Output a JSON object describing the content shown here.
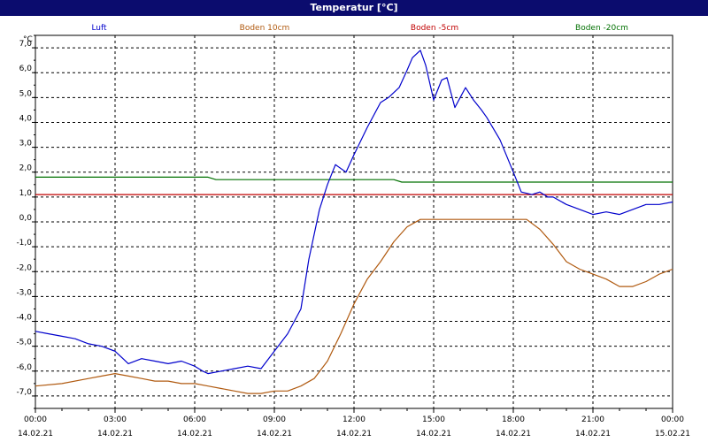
{
  "title": "Temperatur [°C]",
  "chart_data": {
    "type": "line",
    "y_unit": "°C",
    "ylim": [
      -7.5,
      7.5
    ],
    "y_ticks": [
      "7,0",
      "6,0",
      "5,0",
      "4,0",
      "3,0",
      "2,0",
      "1,0",
      "0,0",
      "-1,0",
      "-2,0",
      "-3,0",
      "-4,0",
      "-5,0",
      "-6,0",
      "-7,0"
    ],
    "x_ticks": [
      {
        "time": "00:00",
        "date": "14.02.21"
      },
      {
        "time": "03:00",
        "date": "14.02.21"
      },
      {
        "time": "06:00",
        "date": "14.02.21"
      },
      {
        "time": "09:00",
        "date": "14.02.21"
      },
      {
        "time": "12:00",
        "date": "14.02.21"
      },
      {
        "time": "15:00",
        "date": "14.02.21"
      },
      {
        "time": "18:00",
        "date": "14.02.21"
      },
      {
        "time": "21:00",
        "date": "14.02.21"
      },
      {
        "time": "00:00",
        "date": "15.02.21"
      }
    ],
    "grid": true,
    "series": [
      {
        "name": "Luft",
        "color": "#0000cc",
        "x": [
          0,
          0.5,
          1,
          1.5,
          2,
          2.5,
          3,
          3.3,
          3.5,
          4,
          4.5,
          5,
          5.5,
          6,
          6.3,
          6.5,
          7,
          7.5,
          8,
          8.5,
          9,
          9.5,
          10,
          10.3,
          10.7,
          11,
          11.3,
          11.7,
          12,
          12.5,
          13,
          13.3,
          13.7,
          14,
          14.2,
          14.5,
          14.7,
          15,
          15.3,
          15.5,
          15.8,
          16,
          16.2,
          16.5,
          16.8,
          17,
          17.5,
          18,
          18.3,
          18.7,
          19,
          19.3,
          19.5,
          20,
          20.5,
          21,
          21.5,
          22,
          22.5,
          23,
          23.5,
          24
        ],
        "y": [
          -4.4,
          -4.5,
          -4.6,
          -4.7,
          -4.9,
          -5,
          -5.2,
          -5.5,
          -5.7,
          -5.5,
          -5.6,
          -5.7,
          -5.6,
          -5.8,
          -6,
          -6.1,
          -6,
          -5.9,
          -5.8,
          -5.9,
          -5.2,
          -4.5,
          -3.5,
          -1.5,
          0.5,
          1.5,
          2.3,
          2,
          2.7,
          3.8,
          4.8,
          5,
          5.4,
          6.1,
          6.6,
          6.9,
          6.3,
          4.9,
          5.7,
          5.8,
          4.6,
          5,
          5.4,
          4.9,
          4.5,
          4.2,
          3.3,
          2,
          1.2,
          1.1,
          1.2,
          1,
          1,
          0.7,
          0.5,
          0.3,
          0.4,
          0.3,
          0.5,
          0.7,
          0.7,
          0.8
        ]
      },
      {
        "name": "Boden 10cm",
        "color": "#b05a10",
        "x": [
          0,
          1,
          2,
          2.5,
          3,
          3.5,
          4,
          4.5,
          5,
          5.5,
          6,
          6.5,
          7,
          7.5,
          8,
          8.5,
          9,
          9.5,
          10,
          10.5,
          11,
          11.5,
          12,
          12.5,
          13,
          13.5,
          14,
          14.5,
          15,
          15.5,
          16,
          16.5,
          17,
          17.5,
          18,
          18.5,
          19,
          19.5,
          20,
          20.5,
          21,
          21.5,
          22,
          22.5,
          23,
          23.5,
          24
        ],
        "y": [
          -6.6,
          -6.5,
          -6.3,
          -6.2,
          -6.1,
          -6.2,
          -6.3,
          -6.4,
          -6.4,
          -6.5,
          -6.5,
          -6.6,
          -6.7,
          -6.8,
          -6.9,
          -6.9,
          -6.8,
          -6.8,
          -6.6,
          -6.3,
          -5.6,
          -4.5,
          -3.3,
          -2.3,
          -1.6,
          -0.8,
          -0.2,
          0.1,
          0.1,
          0.1,
          0.1,
          0.1,
          0.1,
          0.1,
          0.1,
          0.1,
          -0.3,
          -0.9,
          -1.6,
          -1.9,
          -2.1,
          -2.3,
          -2.6,
          -2.6,
          -2.4,
          -2.1,
          -1.9
        ]
      },
      {
        "name": "Boden -5cm",
        "color": "#c00000",
        "x": [
          0,
          24
        ],
        "y": [
          1.1,
          1.1
        ]
      },
      {
        "name": "Boden -20cm",
        "color": "#007000",
        "x": [
          0,
          6.5,
          6.8,
          13.5,
          13.8,
          24
        ],
        "y": [
          1.8,
          1.8,
          1.7,
          1.7,
          1.6,
          1.6
        ]
      }
    ]
  }
}
